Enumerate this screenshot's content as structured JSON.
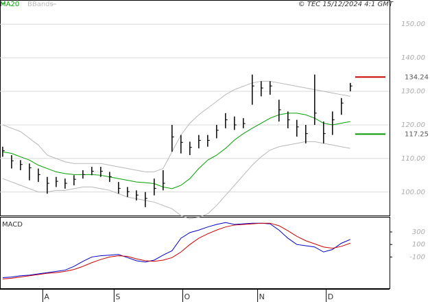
{
  "chart_data": [
    {
      "type": "ohlc",
      "source": "© TEC 15/12/2024 4:1 GMT",
      "xlim": [
        -0.3,
        43.4
      ],
      "ylim": [
        93,
        157
      ],
      "yticks": [
        {
          "value": 100,
          "label": "100.00"
        },
        {
          "value": 110,
          "label": "110.00"
        },
        {
          "value": 120,
          "label": "120.00"
        },
        {
          "value": 130,
          "label": "130.00"
        },
        {
          "value": 140,
          "label": "140.00"
        },
        {
          "value": 150,
          "label": "150.00"
        }
      ],
      "grid": true,
      "high": [
        113.5,
        111,
        109.5,
        108.5,
        107,
        104.5,
        104.5,
        104,
        105,
        106.5,
        107.5,
        107.5,
        106,
        103,
        101.5,
        100.5,
        100,
        104,
        106.5,
        120,
        117,
        115,
        117,
        117,
        120,
        123.5,
        122.5,
        122,
        135,
        133,
        133,
        127.5,
        124,
        121.5,
        120,
        135,
        121,
        124,
        128,
        132.5
      ],
      "low": [
        110.5,
        107,
        106.5,
        103.5,
        103,
        99.5,
        101.5,
        101,
        102,
        104,
        105,
        104.5,
        103,
        99.5,
        98.5,
        97.5,
        95.5,
        99,
        100.5,
        112,
        111.5,
        111,
        113,
        113.5,
        116,
        119,
        118.5,
        119,
        126,
        128.5,
        129,
        121,
        119,
        116.5,
        114.5,
        120,
        114.5,
        117,
        123,
        130
      ],
      "close": [
        112.3,
        109.3,
        108.2,
        107.2,
        105.2,
        102.6,
        103.2,
        102.6,
        103.8,
        105.2,
        106.2,
        106.2,
        104.6,
        101.1,
        100.1,
        99.1,
        98.1,
        101.1,
        102.6,
        116.4,
        114.8,
        113.3,
        115.4,
        115.4,
        118.4,
        121.5,
        120,
        120.4,
        131.6,
        131,
        131.6,
        124.5,
        121.5,
        119.4,
        117.4,
        123.5,
        117.4,
        121.5,
        126.5,
        131.6
      ],
      "bar_color": "#000000",
      "ma": {
        "name": "MA20",
        "color": "#00a000",
        "values": [
          112,
          111.5,
          110.5,
          109.5,
          108,
          107,
          106,
          105.5,
          105.2,
          105.2,
          105.2,
          105,
          104.5,
          104,
          103.5,
          103,
          102.8,
          102.5,
          101.5,
          101,
          102,
          104,
          107,
          109.5,
          111,
          113,
          115.5,
          117.4,
          119,
          120.5,
          122,
          123,
          123.5,
          123.5,
          123,
          122,
          120.5,
          120,
          120.5,
          121
        ]
      },
      "bbands": {
        "name": "BBands",
        "color": "#b8b8b8",
        "upper": [
          120,
          119,
          118,
          116,
          114,
          111,
          110,
          109,
          108.5,
          108.5,
          108.5,
          108.5,
          108,
          107.5,
          107,
          106.5,
          106,
          106,
          107,
          112,
          117,
          120.5,
          123,
          125,
          127,
          129,
          130.5,
          131.5,
          132.5,
          133,
          133,
          132.5,
          132,
          131.5,
          131,
          130.5,
          130,
          129.5,
          129,
          128.5
        ],
        "lower": [
          104,
          103,
          102,
          101,
          100,
          100,
          100.5,
          100.5,
          101,
          101.5,
          101.5,
          101,
          100.5,
          99.5,
          98.5,
          98,
          97.5,
          97,
          96,
          95,
          93,
          92,
          92.5,
          93.5,
          96,
          99,
          102,
          105,
          108,
          110.5,
          112.5,
          113.5,
          114,
          114.5,
          115,
          115,
          114.5,
          114,
          113.5,
          113
        ]
      },
      "levels": [
        {
          "value": 134.24,
          "label": "134.24",
          "color": "#cc0000"
        },
        {
          "value": 117.25,
          "label": "117.25",
          "color": "#009900"
        }
      ]
    },
    {
      "type": "line",
      "title": "MACD",
      "xlim": [
        -0.3,
        43.4
      ],
      "ylim": [
        -600,
        530
      ],
      "yticks": [
        -100,
        100,
        300
      ],
      "xticks": [
        {
          "value": 4.5,
          "label": "A"
        },
        {
          "value": 12.5,
          "label": "S"
        },
        {
          "value": 20.2,
          "label": "O"
        },
        {
          "value": 28.6,
          "label": "N"
        },
        {
          "value": 36.3,
          "label": "D"
        }
      ],
      "series": [
        {
          "color": "#0000cc",
          "values": [
            -430,
            -420,
            -400,
            -390,
            -370,
            -350,
            -330,
            -310,
            -250,
            -170,
            -100,
            -80,
            -70,
            -60,
            -110,
            -160,
            -180,
            -150,
            -70,
            0,
            200,
            290,
            330,
            380,
            420,
            450,
            420,
            430,
            440,
            440,
            430,
            330,
            200,
            100,
            80,
            60,
            -20,
            20,
            120,
            180
          ]
        },
        {
          "color": "#cc0000",
          "values": [
            -450,
            -440,
            -420,
            -400,
            -380,
            -360,
            -350,
            -330,
            -300,
            -250,
            -190,
            -140,
            -100,
            -80,
            -90,
            -130,
            -160,
            -170,
            -150,
            -110,
            -20,
            100,
            200,
            270,
            330,
            380,
            410,
            420,
            430,
            440,
            440,
            400,
            320,
            230,
            160,
            110,
            60,
            40,
            70,
            120
          ]
        }
      ]
    }
  ]
}
